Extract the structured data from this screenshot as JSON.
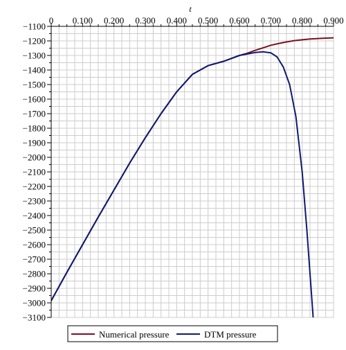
{
  "chart_data": {
    "type": "line",
    "title": "",
    "xlabel": "t",
    "ylabel": "",
    "xlim": [
      0,
      0.9
    ],
    "ylim": [
      -3100,
      -1100
    ],
    "grid": true,
    "legend_position": "bottom",
    "x_tick_labels": [
      "0",
      "0.100",
      "0.200",
      "0.300",
      "0.400",
      "0.500",
      "0.600",
      "0.700",
      "0.800",
      "0.900"
    ],
    "y_tick_labels": [
      "−1100",
      "−1200",
      "−1300",
      "−1400",
      "−1500",
      "−1600",
      "−1700",
      "−1800",
      "−1900",
      "−2000",
      "−2100",
      "−2200",
      "−2300",
      "−2400",
      "−2500",
      "−2600",
      "−2700",
      "−2800",
      "−2900",
      "−3000",
      "−3100"
    ],
    "series": [
      {
        "name": "Numerical pressure",
        "color": "#7a1020",
        "x": [
          0.0,
          0.05,
          0.1,
          0.15,
          0.2,
          0.25,
          0.3,
          0.35,
          0.4,
          0.45,
          0.5,
          0.55,
          0.6,
          0.625,
          0.65,
          0.675,
          0.7,
          0.725,
          0.75,
          0.775,
          0.8,
          0.825,
          0.85,
          0.875,
          0.9
        ],
        "y": [
          -2985,
          -2790,
          -2600,
          -2410,
          -2225,
          -2040,
          -1865,
          -1700,
          -1550,
          -1430,
          -1370,
          -1340,
          -1300,
          -1285,
          -1265,
          -1248,
          -1230,
          -1218,
          -1207,
          -1198,
          -1192,
          -1187,
          -1184,
          -1181,
          -1179
        ]
      },
      {
        "name": "DTM pressure",
        "color": "#0d1a6e",
        "x": [
          0.0,
          0.05,
          0.1,
          0.15,
          0.2,
          0.25,
          0.3,
          0.35,
          0.4,
          0.45,
          0.5,
          0.55,
          0.6,
          0.625,
          0.65,
          0.675,
          0.7,
          0.72,
          0.74,
          0.76,
          0.78,
          0.8,
          0.815,
          0.825,
          0.835
        ],
        "y": [
          -2985,
          -2790,
          -2600,
          -2410,
          -2225,
          -2040,
          -1865,
          -1700,
          -1550,
          -1430,
          -1370,
          -1340,
          -1300,
          -1290,
          -1280,
          -1275,
          -1282,
          -1310,
          -1380,
          -1500,
          -1720,
          -2100,
          -2500,
          -2800,
          -3100
        ]
      }
    ]
  }
}
